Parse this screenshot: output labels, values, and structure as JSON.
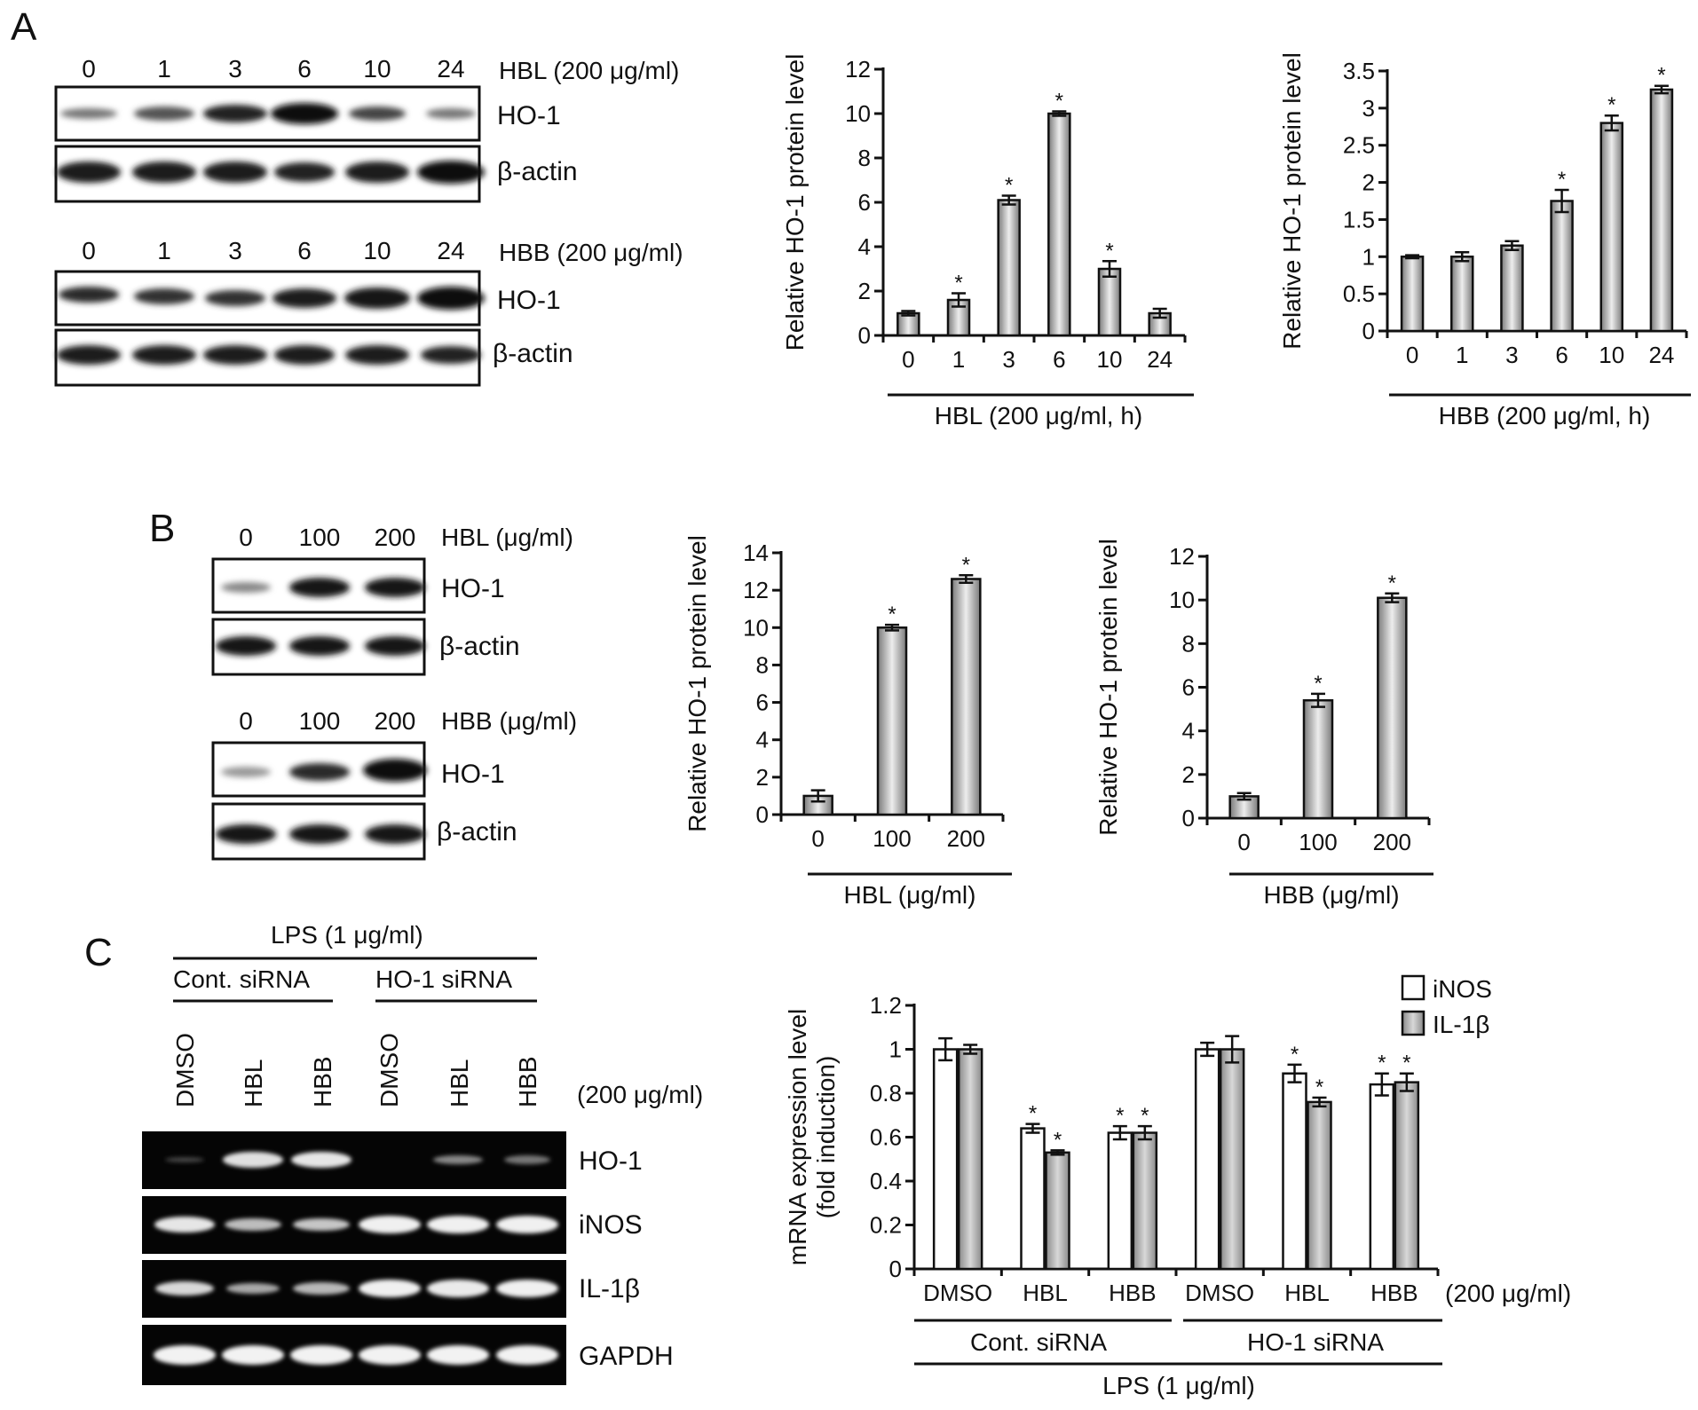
{
  "panels": {
    "a": "A",
    "b": "B",
    "c": "C"
  },
  "panel_a": {
    "hbl_blot": {
      "lanes": [
        "0",
        "1",
        "3",
        "6",
        "10",
        "24"
      ],
      "condition": "HBL (200 μg/ml)",
      "row1": "HO-1",
      "row2": "β-actin"
    },
    "hbb_blot": {
      "lanes": [
        "0",
        "1",
        "3",
        "6",
        "10",
        "24"
      ],
      "condition": "HBB (200 μg/ml)",
      "row1": "HO-1",
      "row2": "β-actin"
    },
    "hbl_xcaption": "HBL (200 μg/ml, h)",
    "hbb_xcaption": "HBB (200 μg/ml, h)"
  },
  "panel_b": {
    "hbl_blot": {
      "lanes": [
        "0",
        "100",
        "200"
      ],
      "condition": "HBL (μg/ml)",
      "row1": "HO-1",
      "row2": "β-actin"
    },
    "hbb_blot": {
      "lanes": [
        "0",
        "100",
        "200"
      ],
      "condition": "HBB (μg/ml)",
      "row1": "HO-1",
      "row2": "β-actin"
    },
    "hbl_xcaption": "HBL (μg/ml)",
    "hbb_xcaption": "HBB (μg/ml)"
  },
  "panel_c": {
    "gel": {
      "treatment": "LPS (1 μg/ml)",
      "group1": "Cont. siRNA",
      "group2": "HO-1 siRNA",
      "lanes": [
        "DMSO",
        "HBL",
        "HBB",
        "DMSO",
        "HBL",
        "HBB"
      ],
      "dose": "(200 μg/ml)",
      "rows": [
        "HO-1",
        "iNOS",
        "IL-1β",
        "GAPDH"
      ]
    },
    "chart_dose": "(200 μg/ml)",
    "group1": "Cont. siRNA",
    "group2": "HO-1 siRNA",
    "treatment": "LPS (1 μg/ml)"
  },
  "chart_data": [
    {
      "id": "A-HBL",
      "type": "bar",
      "categories": [
        "0",
        "1",
        "3",
        "6",
        "10",
        "24"
      ],
      "values": [
        1.0,
        1.6,
        6.1,
        10.0,
        3.0,
        1.0
      ],
      "errors": [
        0.1,
        0.3,
        0.2,
        0.1,
        0.35,
        0.2
      ],
      "significant": [
        false,
        true,
        true,
        true,
        true,
        false
      ],
      "ylabel": "Relative HO-1 protein level",
      "xlabel": "HBL (200 μg/ml, h)",
      "ylim": [
        0,
        12
      ],
      "yticks": [
        0,
        2,
        4,
        6,
        8,
        10,
        12
      ]
    },
    {
      "id": "A-HBB",
      "type": "bar",
      "categories": [
        "0",
        "1",
        "3",
        "6",
        "10",
        "24"
      ],
      "values": [
        1.0,
        1.0,
        1.15,
        1.75,
        2.8,
        3.25
      ],
      "errors": [
        0.02,
        0.06,
        0.06,
        0.15,
        0.1,
        0.05
      ],
      "significant": [
        false,
        false,
        false,
        true,
        true,
        true
      ],
      "ylabel": "Relative HO-1 protein level",
      "xlabel": "HBB (200 μg/ml, h)",
      "ylim": [
        0,
        3.5
      ],
      "yticks": [
        0,
        0.5,
        1,
        1.5,
        2,
        2.5,
        3,
        3.5
      ]
    },
    {
      "id": "B-HBL",
      "type": "bar",
      "categories": [
        "0",
        "100",
        "200"
      ],
      "values": [
        1.0,
        10.0,
        12.6
      ],
      "errors": [
        0.3,
        0.15,
        0.2
      ],
      "significant": [
        false,
        true,
        true
      ],
      "ylabel": "Relative HO-1 protein level",
      "xlabel": "HBL (μg/ml)",
      "ylim": [
        0,
        14
      ],
      "yticks": [
        0,
        2,
        4,
        6,
        8,
        10,
        12,
        14
      ]
    },
    {
      "id": "B-HBB",
      "type": "bar",
      "categories": [
        "0",
        "100",
        "200"
      ],
      "values": [
        1.0,
        5.4,
        10.1
      ],
      "errors": [
        0.15,
        0.3,
        0.2
      ],
      "significant": [
        false,
        true,
        true
      ],
      "ylabel": "Relative HO-1 protein level",
      "xlabel": "HBB (μg/ml)",
      "ylim": [
        0,
        12
      ],
      "yticks": [
        0,
        2,
        4,
        6,
        8,
        10,
        12
      ]
    },
    {
      "id": "C-mRNA",
      "type": "bar",
      "categories": [
        "DMSO",
        "HBL",
        "HBB",
        "DMSO",
        "HBL",
        "HBB"
      ],
      "series": [
        {
          "name": "iNOS",
          "color": "#ffffff",
          "values": [
            1.0,
            0.64,
            0.62,
            1.0,
            0.89,
            0.84
          ],
          "errors": [
            0.05,
            0.02,
            0.03,
            0.03,
            0.04,
            0.05
          ],
          "significant": [
            false,
            true,
            true,
            false,
            true,
            true
          ]
        },
        {
          "name": "IL-1β",
          "color": "#a9a9a9",
          "values": [
            1.0,
            0.53,
            0.62,
            1.0,
            0.76,
            0.85
          ],
          "errors": [
            0.02,
            0.01,
            0.03,
            0.06,
            0.02,
            0.04
          ],
          "significant": [
            false,
            true,
            true,
            false,
            true,
            true
          ]
        }
      ],
      "ylabel": [
        "mRNA expression level",
        "(fold induction)"
      ],
      "ylim": [
        0,
        1.2
      ],
      "yticks": [
        "0",
        "0.2",
        "0.4",
        "0.6",
        "0.8",
        "1",
        "1.2"
      ],
      "legend": "top-right"
    }
  ]
}
